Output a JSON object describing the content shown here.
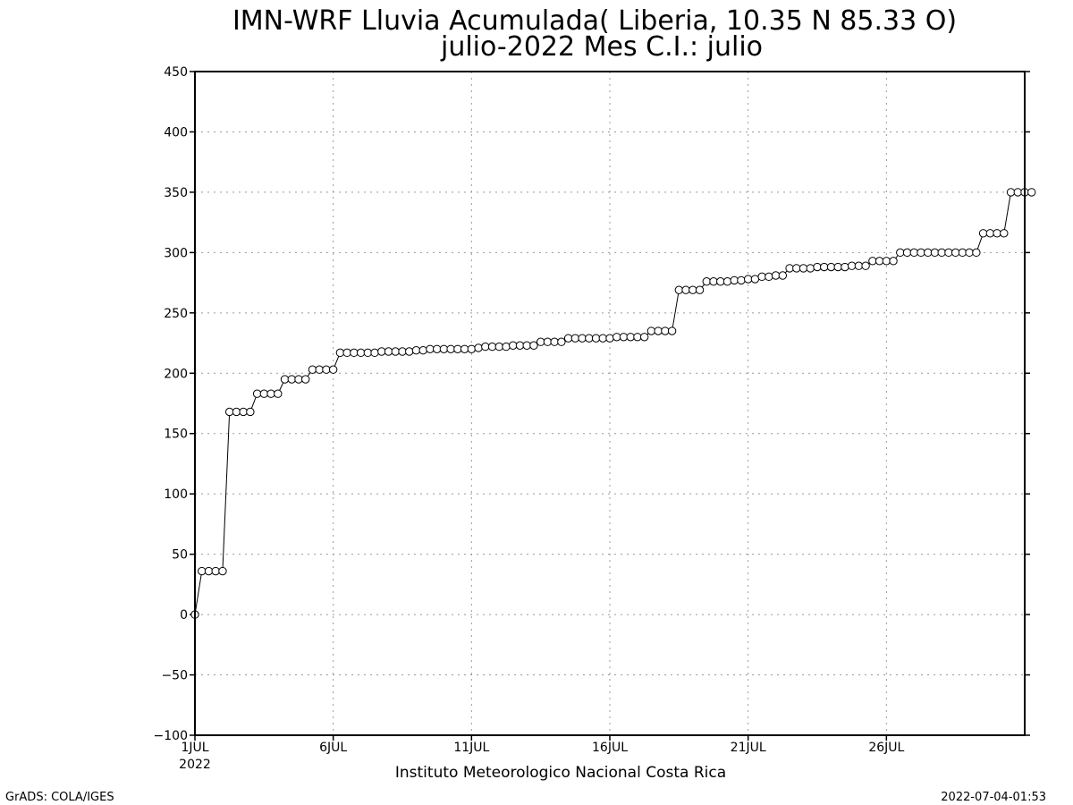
{
  "chart_data": {
    "type": "line",
    "title": "IMN-WRF  Lluvia Acumulada( Liberia, 10.35  N 85.33  O)",
    "subtitle": "julio-2022 Mes C.I.: julio",
    "xlabel": "Instituto Meteorologico Nacional Costa Rica",
    "ylabel": "",
    "ylim": [
      -100,
      450
    ],
    "xlim_days": [
      1,
      31
    ],
    "yticks": [
      -100,
      -50,
      0,
      50,
      100,
      150,
      200,
      250,
      300,
      350,
      400,
      450
    ],
    "xticks": [
      {
        "day": 1,
        "label": "1JUL"
      },
      {
        "day": 6,
        "label": "6JUL"
      },
      {
        "day": 11,
        "label": "11JUL"
      },
      {
        "day": 16,
        "label": "16JUL"
      },
      {
        "day": 21,
        "label": "21JUL"
      },
      {
        "day": 26,
        "label": "26JUL"
      }
    ],
    "year_label": "2022",
    "grid": true,
    "marker": "open-circle",
    "time_step_hours": 6,
    "start": "2022-07-01T00",
    "series": [
      {
        "values": [
          0,
          36,
          36,
          36,
          36,
          168,
          168,
          168,
          168,
          183,
          183,
          183,
          183,
          195,
          195,
          195,
          195,
          203,
          203,
          203,
          203,
          217,
          217,
          217,
          217,
          217,
          217,
          218,
          218,
          218,
          218,
          218,
          219,
          219,
          220,
          220,
          220,
          220,
          220,
          220,
          220,
          221,
          222,
          222,
          222,
          222,
          223,
          223,
          223,
          223,
          226,
          226,
          226,
          226,
          229,
          229,
          229,
          229,
          229,
          229,
          229,
          230,
          230,
          230,
          230,
          230,
          235,
          235,
          235,
          235,
          269,
          269,
          269,
          269,
          276,
          276,
          276,
          276,
          277,
          277,
          278,
          278,
          280,
          280,
          281,
          281,
          287,
          287,
          287,
          287,
          288,
          288,
          288,
          288,
          288,
          289,
          289,
          289,
          293,
          293,
          293,
          293,
          300,
          300,
          300,
          300,
          300,
          300,
          300,
          300,
          300,
          300,
          300,
          300,
          316,
          316,
          316,
          316,
          350,
          350,
          350,
          350
        ]
      }
    ]
  },
  "footer": {
    "left": "GrADS: COLA/IGES",
    "right": "2022-07-04-01:53"
  },
  "colors": {
    "line": "#000000",
    "grid": "#999999",
    "background": "#ffffff"
  }
}
